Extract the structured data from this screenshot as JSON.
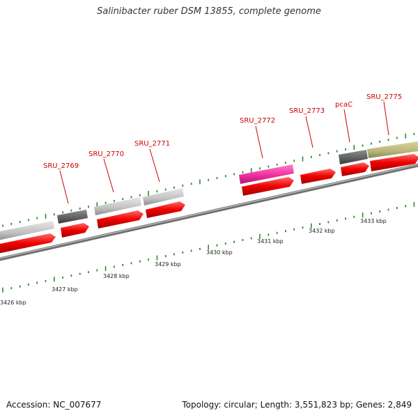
{
  "title": "Salinibacter ruber DSM 13855, complete genome",
  "footer": {
    "accession": "Accession: NC_007677",
    "summary": "Topology: circular; Length: 3,551,823 bp; Genes: 2,849"
  },
  "colors": {
    "cds": "#ee0000",
    "feature_grey": "#c4c4c4",
    "feature_dark": "#6b6b6b",
    "feature_pink": "#ee2a9a",
    "feature_olive": "#b8b47a",
    "backbone": "#8a8a8a",
    "ticks": "#2d8a2d",
    "label": "#cc0000"
  },
  "axis_labels": [
    "3426 kbp",
    "3427 kbp",
    "3428 kbp",
    "3429 kbp",
    "3430 kbp",
    "3431 kbp",
    "3432 kbp",
    "3433 kbp"
  ],
  "gene_labels": [
    "SRU_2769",
    "SRU_2770",
    "SRU_2771",
    "SRU_2772",
    "SRU_2773",
    "pcaC",
    "SRU_2775"
  ]
}
